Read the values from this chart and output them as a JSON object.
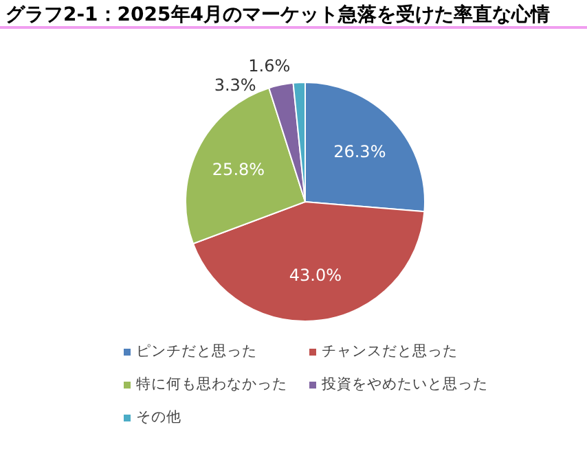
{
  "chart_data": {
    "type": "pie",
    "title": "グラフ2-1：2025年4月のマーケット急落を受けた率直な心情",
    "categories": [
      "ピンチだと思った",
      "チャンスだと思った",
      "特に何も思わなかった",
      "投資をやめたいと思った",
      "その他"
    ],
    "values": [
      26.3,
      43.0,
      25.8,
      3.3,
      1.6
    ],
    "value_labels": [
      "26.3%",
      "43.0%",
      "25.8%",
      "3.3%",
      "1.6%"
    ],
    "colors": [
      "#4f81bd",
      "#c0504d",
      "#9bbb59",
      "#8064a2",
      "#4bacc6"
    ],
    "legend": "bottom"
  }
}
